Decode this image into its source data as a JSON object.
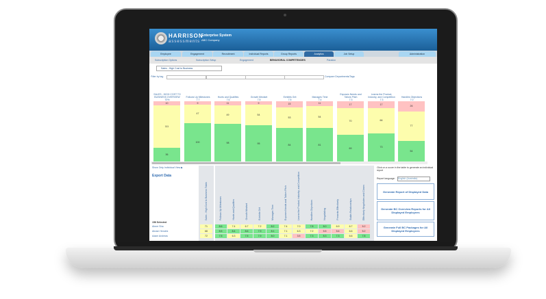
{
  "app": {
    "brand_line1": "HARRISON",
    "brand_line2": "assessments",
    "system": "Enterprise System",
    "company": "ABC Company"
  },
  "tabs": [
    {
      "label": "Employee"
    },
    {
      "label": "Engagement"
    },
    {
      "label": "Recruitment"
    },
    {
      "label": "Individual Reports"
    },
    {
      "label": "Group Reports"
    },
    {
      "label": "Analytics",
      "active": true
    },
    {
      "label": "Job Setup"
    },
    {
      "label": "Administration"
    }
  ],
  "subnav": [
    {
      "label": "Subscription Options"
    },
    {
      "label": "Subscription Setup"
    },
    {
      "label": "Engagement"
    },
    {
      "label": "BEHAVIORAL COMPETENCIES",
      "active": true
    },
    {
      "label": "Paradox"
    }
  ],
  "job_select": "Sales - High Cost to Business",
  "filter_label": "Filter by tag",
  "compare_link": "Compare Departments/Tags",
  "colors": {
    "red": "#ffc2c2",
    "yellow": "#fdfdad",
    "green": "#79e58d",
    "header_blue": "#1b5f98"
  },
  "bars": [
    {
      "label": "SALES - HIGH COST TO BUSINESS OVERVIEW",
      "score": "70%",
      "red": 10,
      "yellow": 111,
      "green": 36
    },
    {
      "label": "Follows Up Milestones",
      "score": "7.7",
      "red": 9,
      "yellow": 47,
      "green": 100
    },
    {
      "label": "Hunts and Qualifies",
      "score": "7.6",
      "red": 11,
      "yellow": 49,
      "green": 98
    },
    {
      "label": "Growth Mindset",
      "score": "7.5",
      "red": 9,
      "yellow": 54,
      "green": 95
    },
    {
      "label": "Exhibits Grit",
      "score": "7.5",
      "red": 15,
      "yellow": 53,
      "green": 84
    },
    {
      "label": "Manages Time",
      "score": "7.4",
      "red": 11,
      "yellow": 54,
      "green": 81
    },
    {
      "label": "Exposes Needs and Tailors Pitch",
      "score": "7.3",
      "red": 17,
      "yellow": 70,
      "green": 69
    },
    {
      "label": "Learns the Product, Industry, and Competition",
      "score": "7.3",
      "red": 17,
      "yellow": 66,
      "green": 73
    },
    {
      "label": "Handles Objections",
      "score": "7.0",
      "red": 26,
      "yellow": 77,
      "green": 54
    }
  ],
  "left_panel": {
    "individual_link": "Show Only Individual View ▶",
    "export": "Export Data",
    "selected": "156 Selected"
  },
  "table": {
    "columns": [
      "Sales - High Cost to Business Totals",
      "Follows Up Milestones",
      "Hunts and Qualifies",
      "Growth Mindset",
      "Exhibits Grit",
      "Manages Time",
      "Exposes Needs and Tailors Pitch",
      "Learns the Product, Industry, and Competition",
      "Handles Objections",
      "Negotiating",
      "Presents Effectively",
      "Builds Relationships",
      "Effectively Negotiates and Closes"
    ],
    "rows": [
      {
        "name": "Abner Sha",
        "values": [
          "71",
          "8.6",
          "7.4",
          "6.7",
          "7.2",
          "8.2",
          "7.4",
          "7.0",
          "7.8",
          "8.0",
          "6.9",
          "6.7",
          "5.2"
        ],
        "levels": [
          "y",
          "g",
          "y",
          "y",
          "y",
          "g",
          "y",
          "y",
          "g",
          "g",
          "y",
          "y",
          "r"
        ]
      },
      {
        "name": "Abram Hendrix",
        "values": [
          "68",
          "8.5",
          "8.4",
          "8.6",
          "7.9",
          "8.1",
          "7.1",
          "6.3",
          "7.2",
          "5.5",
          "5.6",
          "6.6",
          "5.2"
        ],
        "levels": [
          "y",
          "g",
          "g",
          "g",
          "g",
          "g",
          "y",
          "y",
          "y",
          "r",
          "r",
          "y",
          "r"
        ]
      },
      {
        "name": "Adam Andreas",
        "values": [
          "72",
          "7.5",
          "6.3",
          "7.5",
          "7.9",
          "8.0",
          "7.1",
          "3.5",
          "7.3",
          "8.3",
          "7.3",
          "6.6",
          "7.8"
        ],
        "levels": [
          "y",
          "g",
          "y",
          "g",
          "g",
          "g",
          "y",
          "r",
          "g",
          "g",
          "g",
          "y",
          "g"
        ]
      }
    ]
  },
  "right_panel": {
    "hint": "Click on a score in the table to generate an individual report",
    "language_label": "Report language:",
    "language_value": "English (Australia)",
    "btn1": "Generate Report of Displayed Data",
    "btn2": "Generate BC Overview Reports for All Displayed Employees",
    "btn3": "Generate Full BC Packages for All Displayed Employees"
  }
}
